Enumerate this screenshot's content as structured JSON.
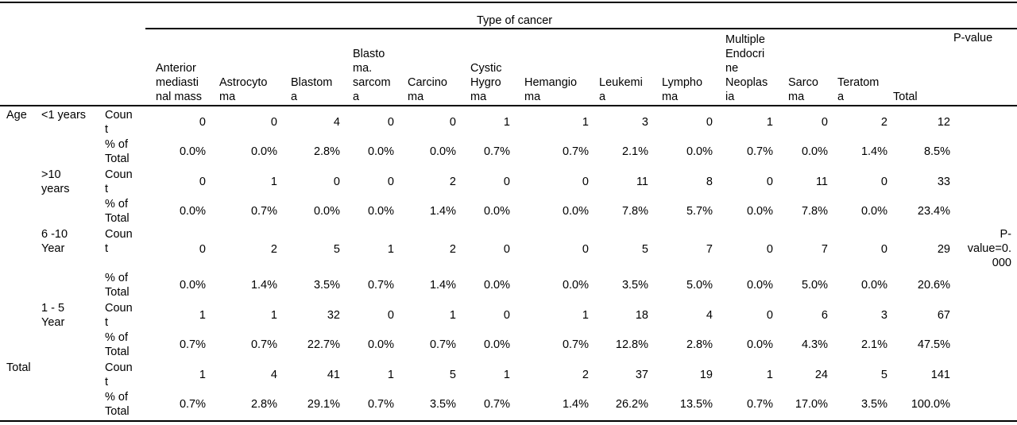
{
  "table": {
    "group_header": "Type of cancer",
    "pvalue_header": "P-value",
    "columns": [
      "Anterior\nmediasti\nnal mass",
      "Astrocyto\nma",
      "Blastom\na",
      "Blasto\nma.\nsarcom\na",
      "Carcino\nma",
      "Cystic\nHygro\nma",
      "Hemangio\nma",
      "Leukemi\na",
      "Lympho\nma",
      "Multiple\nEndocri\nne\nNeoplas\nia",
      "Sarco\nma",
      "Teratom\na",
      "Total"
    ],
    "age_label": "Age",
    "pvalue_text": "P-\nvalue=0.\n000",
    "groups": [
      {
        "label": "<1 years",
        "rows": [
          {
            "stat": "Coun\nt",
            "values": [
              "0",
              "0",
              "4",
              "0",
              "0",
              "1",
              "1",
              "3",
              "0",
              "1",
              "0",
              "2",
              "12"
            ]
          },
          {
            "stat": "% of\nTotal",
            "values": [
              "0.0%",
              "0.0%",
              "2.8%",
              "0.0%",
              "0.0%",
              "0.7%",
              "0.7%",
              "2.1%",
              "0.0%",
              "0.7%",
              "0.0%",
              "1.4%",
              "8.5%"
            ]
          }
        ]
      },
      {
        "label": ">10\nyears",
        "rows": [
          {
            "stat": "Coun\nt",
            "values": [
              "0",
              "1",
              "0",
              "0",
              "2",
              "0",
              "0",
              "11",
              "8",
              "0",
              "11",
              "0",
              "33"
            ]
          },
          {
            "stat": "% of\nTotal",
            "values": [
              "0.0%",
              "0.7%",
              "0.0%",
              "0.0%",
              "1.4%",
              "0.0%",
              "0.0%",
              "7.8%",
              "5.7%",
              "0.0%",
              "7.8%",
              "0.0%",
              "23.4%"
            ]
          }
        ]
      },
      {
        "label": "6 -10\nYear",
        "rows": [
          {
            "stat": "Coun\nt",
            "values": [
              "0",
              "2",
              "5",
              "1",
              "2",
              "0",
              "0",
              "5",
              "7",
              "0",
              "7",
              "0",
              "29"
            ]
          },
          {
            "stat": "% of\nTotal",
            "values": [
              "0.0%",
              "1.4%",
              "3.5%",
              "0.7%",
              "1.4%",
              "0.0%",
              "0.0%",
              "3.5%",
              "5.0%",
              "0.0%",
              "5.0%",
              "0.0%",
              "20.6%"
            ]
          }
        ]
      },
      {
        "label": "1 - 5\nYear",
        "rows": [
          {
            "stat": "Coun\nt",
            "values": [
              "1",
              "1",
              "32",
              "0",
              "1",
              "0",
              "1",
              "18",
              "4",
              "0",
              "6",
              "3",
              "67"
            ]
          },
          {
            "stat": "% of\nTotal",
            "values": [
              "0.7%",
              "0.7%",
              "22.7%",
              "0.0%",
              "0.7%",
              "0.0%",
              "0.7%",
              "12.8%",
              "2.8%",
              "0.0%",
              "4.3%",
              "2.1%",
              "47.5%"
            ]
          }
        ]
      }
    ],
    "total": {
      "label": "Total",
      "rows": [
        {
          "stat": "Coun\nt",
          "values": [
            "1",
            "4",
            "41",
            "1",
            "5",
            "1",
            "2",
            "37",
            "19",
            "1",
            "24",
            "5",
            "141"
          ]
        },
        {
          "stat": "% of\nTotal",
          "values": [
            "0.7%",
            "2.8%",
            "29.1%",
            "0.7%",
            "3.5%",
            "0.7%",
            "1.4%",
            "26.2%",
            "13.5%",
            "0.7%",
            "17.0%",
            "3.5%",
            "100.0%"
          ]
        }
      ]
    }
  }
}
